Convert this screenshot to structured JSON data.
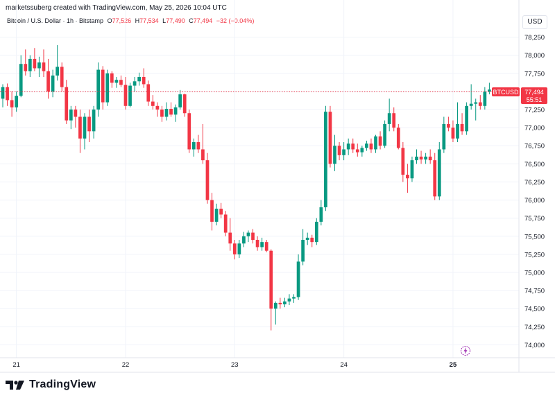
{
  "header": {
    "caption": "marketssuberg created with TradingView.com, May 25, 2026 10:04 UTC",
    "symbol": "Bitcoin / U.S. Dollar · 1h · Bitstamp",
    "open_label": "O",
    "open": "77,526",
    "high_label": "H",
    "high": "77,534",
    "low_label": "L",
    "low": "77,490",
    "close_label": "C",
    "close": "77,494",
    "change": "−32 (−0.04%)",
    "currency": "USD"
  },
  "price_tag": {
    "symbol": "BTCUSD",
    "price": "77,494",
    "countdown": "55:51"
  },
  "brand": {
    "name": "TradingView"
  },
  "colors": {
    "up": "#089981",
    "down": "#f23645",
    "grid": "#f0f3fa",
    "axis_text": "#131722",
    "price_line": "#f23645"
  },
  "chart_data": {
    "type": "candlestick",
    "y_ticks": [
      74000,
      74250,
      74500,
      74750,
      75000,
      75250,
      75500,
      75750,
      76000,
      76250,
      76500,
      76750,
      77000,
      77250,
      77500,
      77750,
      78000,
      78250
    ],
    "y_tick_labels": [
      "74,000",
      "74,250",
      "74,500",
      "74,750",
      "75,000",
      "75,250",
      "75,500",
      "75,750",
      "76,000",
      "76,250",
      "76,500",
      "76,750",
      "77,000",
      "77,250",
      "77,500",
      "77,750",
      "78,000",
      "78,250"
    ],
    "ylim": [
      73880,
      78380
    ],
    "x_range": [
      "2026-05-20T21:00",
      "2026-05-25T14:30"
    ],
    "x_ticks": [
      {
        "t": "2026-05-21T00:00",
        "label": "21",
        "bold": false
      },
      {
        "t": "2026-05-22T00:00",
        "label": "22",
        "bold": false
      },
      {
        "t": "2026-05-23T00:00",
        "label": "23",
        "bold": false
      },
      {
        "t": "2026-05-24T00:00",
        "label": "24",
        "bold": false
      },
      {
        "t": "2026-05-25T00:00",
        "label": "25",
        "bold": true
      }
    ],
    "last_price": 77494,
    "candles": [
      {
        "t": "2026-05-20T21:00",
        "o": 77400,
        "h": 77600,
        "l": 77280,
        "c": 77560
      },
      {
        "t": "2026-05-20T22:00",
        "o": 77560,
        "h": 77610,
        "l": 77300,
        "c": 77380
      },
      {
        "t": "2026-05-20T23:00",
        "o": 77380,
        "h": 77500,
        "l": 77150,
        "c": 77280
      },
      {
        "t": "2026-05-21T00:00",
        "o": 77280,
        "h": 77500,
        "l": 77220,
        "c": 77440
      },
      {
        "t": "2026-05-21T01:00",
        "o": 77440,
        "h": 78000,
        "l": 77420,
        "c": 77880
      },
      {
        "t": "2026-05-21T02:00",
        "o": 77880,
        "h": 78080,
        "l": 77720,
        "c": 77780
      },
      {
        "t": "2026-05-21T03:00",
        "o": 77780,
        "h": 78000,
        "l": 77700,
        "c": 77950
      },
      {
        "t": "2026-05-21T04:00",
        "o": 77950,
        "h": 78100,
        "l": 77780,
        "c": 77820
      },
      {
        "t": "2026-05-21T05:00",
        "o": 77820,
        "h": 77980,
        "l": 77700,
        "c": 77900
      },
      {
        "t": "2026-05-21T06:00",
        "o": 77900,
        "h": 78080,
        "l": 77700,
        "c": 77780
      },
      {
        "t": "2026-05-21T07:00",
        "o": 77780,
        "h": 77950,
        "l": 77400,
        "c": 77500
      },
      {
        "t": "2026-05-21T08:00",
        "o": 77500,
        "h": 77800,
        "l": 77420,
        "c": 77720
      },
      {
        "t": "2026-05-21T09:00",
        "o": 77720,
        "h": 78140,
        "l": 77650,
        "c": 77840
      },
      {
        "t": "2026-05-21T10:00",
        "o": 77840,
        "h": 77900,
        "l": 77500,
        "c": 77560
      },
      {
        "t": "2026-05-21T11:00",
        "o": 77560,
        "h": 77660,
        "l": 77050,
        "c": 77100
      },
      {
        "t": "2026-05-21T12:00",
        "o": 77100,
        "h": 77300,
        "l": 76980,
        "c": 77250
      },
      {
        "t": "2026-05-21T13:00",
        "o": 77250,
        "h": 77300,
        "l": 77000,
        "c": 77150
      },
      {
        "t": "2026-05-21T14:00",
        "o": 77150,
        "h": 77250,
        "l": 76650,
        "c": 76850
      },
      {
        "t": "2026-05-21T15:00",
        "o": 76850,
        "h": 77200,
        "l": 76700,
        "c": 77150
      },
      {
        "t": "2026-05-21T16:00",
        "o": 77150,
        "h": 77250,
        "l": 76800,
        "c": 76950
      },
      {
        "t": "2026-05-21T17:00",
        "o": 76950,
        "h": 77300,
        "l": 76850,
        "c": 77250
      },
      {
        "t": "2026-05-21T18:00",
        "o": 77250,
        "h": 77900,
        "l": 77150,
        "c": 77800
      },
      {
        "t": "2026-05-21T19:00",
        "o": 77800,
        "h": 77850,
        "l": 77250,
        "c": 77350
      },
      {
        "t": "2026-05-21T20:00",
        "o": 77350,
        "h": 77800,
        "l": 77300,
        "c": 77750
      },
      {
        "t": "2026-05-21T21:00",
        "o": 77750,
        "h": 77780,
        "l": 77550,
        "c": 77620
      },
      {
        "t": "2026-05-21T22:00",
        "o": 77620,
        "h": 77700,
        "l": 77550,
        "c": 77660
      },
      {
        "t": "2026-05-21T23:00",
        "o": 77660,
        "h": 77720,
        "l": 77560,
        "c": 77590
      },
      {
        "t": "2026-05-22T00:00",
        "o": 77590,
        "h": 77700,
        "l": 77250,
        "c": 77300
      },
      {
        "t": "2026-05-22T01:00",
        "o": 77300,
        "h": 77620,
        "l": 77280,
        "c": 77580
      },
      {
        "t": "2026-05-22T02:00",
        "o": 77580,
        "h": 77700,
        "l": 77500,
        "c": 77640
      },
      {
        "t": "2026-05-22T03:00",
        "o": 77640,
        "h": 77760,
        "l": 77580,
        "c": 77700
      },
      {
        "t": "2026-05-22T04:00",
        "o": 77700,
        "h": 77820,
        "l": 77550,
        "c": 77600
      },
      {
        "t": "2026-05-22T05:00",
        "o": 77600,
        "h": 77650,
        "l": 77300,
        "c": 77360
      },
      {
        "t": "2026-05-22T06:00",
        "o": 77360,
        "h": 77450,
        "l": 77250,
        "c": 77300
      },
      {
        "t": "2026-05-22T07:00",
        "o": 77300,
        "h": 77350,
        "l": 77150,
        "c": 77250
      },
      {
        "t": "2026-05-22T08:00",
        "o": 77250,
        "h": 77300,
        "l": 77080,
        "c": 77150
      },
      {
        "t": "2026-05-22T09:00",
        "o": 77150,
        "h": 77350,
        "l": 77100,
        "c": 77260
      },
      {
        "t": "2026-05-22T10:00",
        "o": 77260,
        "h": 77350,
        "l": 77150,
        "c": 77180
      },
      {
        "t": "2026-05-22T11:00",
        "o": 77180,
        "h": 77320,
        "l": 77080,
        "c": 77280
      },
      {
        "t": "2026-05-22T12:00",
        "o": 77280,
        "h": 77520,
        "l": 77250,
        "c": 77460
      },
      {
        "t": "2026-05-22T13:00",
        "o": 77460,
        "h": 77470,
        "l": 77150,
        "c": 77200
      },
      {
        "t": "2026-05-22T14:00",
        "o": 77200,
        "h": 77250,
        "l": 76650,
        "c": 76700
      },
      {
        "t": "2026-05-22T15:00",
        "o": 76700,
        "h": 76850,
        "l": 76600,
        "c": 76800
      },
      {
        "t": "2026-05-22T16:00",
        "o": 76800,
        "h": 76900,
        "l": 76650,
        "c": 76700
      },
      {
        "t": "2026-05-22T17:00",
        "o": 76700,
        "h": 77050,
        "l": 76500,
        "c": 76550
      },
      {
        "t": "2026-05-22T18:00",
        "o": 76550,
        "h": 76650,
        "l": 75950,
        "c": 76000
      },
      {
        "t": "2026-05-22T19:00",
        "o": 76000,
        "h": 76100,
        "l": 75580,
        "c": 75700
      },
      {
        "t": "2026-05-22T20:00",
        "o": 75700,
        "h": 75950,
        "l": 75650,
        "c": 75880
      },
      {
        "t": "2026-05-22T21:00",
        "o": 75880,
        "h": 75960,
        "l": 75750,
        "c": 75800
      },
      {
        "t": "2026-05-22T22:00",
        "o": 75800,
        "h": 75850,
        "l": 75500,
        "c": 75550
      },
      {
        "t": "2026-05-22T23:00",
        "o": 75550,
        "h": 75750,
        "l": 75300,
        "c": 75400
      },
      {
        "t": "2026-05-23T00:00",
        "o": 75400,
        "h": 75450,
        "l": 75180,
        "c": 75250
      },
      {
        "t": "2026-05-23T01:00",
        "o": 75250,
        "h": 75450,
        "l": 75200,
        "c": 75400
      },
      {
        "t": "2026-05-23T02:00",
        "o": 75400,
        "h": 75560,
        "l": 75350,
        "c": 75500
      },
      {
        "t": "2026-05-23T03:00",
        "o": 75500,
        "h": 75580,
        "l": 75420,
        "c": 75550
      },
      {
        "t": "2026-05-23T04:00",
        "o": 75550,
        "h": 75600,
        "l": 75400,
        "c": 75450
      },
      {
        "t": "2026-05-23T05:00",
        "o": 75450,
        "h": 75500,
        "l": 75300,
        "c": 75350
      },
      {
        "t": "2026-05-23T06:00",
        "o": 75350,
        "h": 75480,
        "l": 75300,
        "c": 75420
      },
      {
        "t": "2026-05-23T07:00",
        "o": 75420,
        "h": 75450,
        "l": 75280,
        "c": 75300
      },
      {
        "t": "2026-05-23T08:00",
        "o": 75300,
        "h": 75320,
        "l": 74200,
        "c": 74500
      },
      {
        "t": "2026-05-23T09:00",
        "o": 74500,
        "h": 74600,
        "l": 74280,
        "c": 74580
      },
      {
        "t": "2026-05-23T10:00",
        "o": 74580,
        "h": 74650,
        "l": 74500,
        "c": 74560
      },
      {
        "t": "2026-05-23T11:00",
        "o": 74560,
        "h": 74650,
        "l": 74520,
        "c": 74600
      },
      {
        "t": "2026-05-23T12:00",
        "o": 74600,
        "h": 74700,
        "l": 74550,
        "c": 74640
      },
      {
        "t": "2026-05-23T13:00",
        "o": 74640,
        "h": 74700,
        "l": 74580,
        "c": 74660
      },
      {
        "t": "2026-05-23T14:00",
        "o": 74660,
        "h": 75250,
        "l": 74620,
        "c": 75150
      },
      {
        "t": "2026-05-23T15:00",
        "o": 75150,
        "h": 75600,
        "l": 75100,
        "c": 75450
      },
      {
        "t": "2026-05-23T16:00",
        "o": 75450,
        "h": 75550,
        "l": 75380,
        "c": 75480
      },
      {
        "t": "2026-05-23T17:00",
        "o": 75480,
        "h": 75520,
        "l": 75350,
        "c": 75420
      },
      {
        "t": "2026-05-23T18:00",
        "o": 75420,
        "h": 75750,
        "l": 75380,
        "c": 75700
      },
      {
        "t": "2026-05-23T19:00",
        "o": 75700,
        "h": 76000,
        "l": 75650,
        "c": 75900
      },
      {
        "t": "2026-05-23T20:00",
        "o": 75900,
        "h": 77300,
        "l": 75850,
        "c": 77220
      },
      {
        "t": "2026-05-23T21:00",
        "o": 77220,
        "h": 77300,
        "l": 76450,
        "c": 76500
      },
      {
        "t": "2026-05-23T22:00",
        "o": 76500,
        "h": 76900,
        "l": 76400,
        "c": 76750
      },
      {
        "t": "2026-05-23T23:00",
        "o": 76750,
        "h": 76800,
        "l": 76550,
        "c": 76620
      },
      {
        "t": "2026-05-24T00:00",
        "o": 76620,
        "h": 76800,
        "l": 76550,
        "c": 76700
      },
      {
        "t": "2026-05-24T01:00",
        "o": 76700,
        "h": 76850,
        "l": 76620,
        "c": 76780
      },
      {
        "t": "2026-05-24T02:00",
        "o": 76780,
        "h": 76850,
        "l": 76650,
        "c": 76700
      },
      {
        "t": "2026-05-24T03:00",
        "o": 76700,
        "h": 76780,
        "l": 76600,
        "c": 76660
      },
      {
        "t": "2026-05-24T04:00",
        "o": 76660,
        "h": 76750,
        "l": 76600,
        "c": 76720
      },
      {
        "t": "2026-05-24T05:00",
        "o": 76720,
        "h": 76820,
        "l": 76680,
        "c": 76780
      },
      {
        "t": "2026-05-24T06:00",
        "o": 76780,
        "h": 76850,
        "l": 76650,
        "c": 76700
      },
      {
        "t": "2026-05-24T07:00",
        "o": 76700,
        "h": 76900,
        "l": 76650,
        "c": 76880
      },
      {
        "t": "2026-05-24T08:00",
        "o": 76880,
        "h": 76950,
        "l": 76700,
        "c": 76750
      },
      {
        "t": "2026-05-24T09:00",
        "o": 76750,
        "h": 77100,
        "l": 76720,
        "c": 77050
      },
      {
        "t": "2026-05-24T10:00",
        "o": 77050,
        "h": 77400,
        "l": 76950,
        "c": 77200
      },
      {
        "t": "2026-05-24T11:00",
        "o": 77200,
        "h": 77280,
        "l": 76950,
        "c": 77000
      },
      {
        "t": "2026-05-24T12:00",
        "o": 77000,
        "h": 77050,
        "l": 76700,
        "c": 76720
      },
      {
        "t": "2026-05-24T13:00",
        "o": 76720,
        "h": 76800,
        "l": 76250,
        "c": 76350
      },
      {
        "t": "2026-05-24T14:00",
        "o": 76350,
        "h": 76500,
        "l": 76100,
        "c": 76300
      },
      {
        "t": "2026-05-24T15:00",
        "o": 76300,
        "h": 76600,
        "l": 76250,
        "c": 76550
      },
      {
        "t": "2026-05-24T16:00",
        "o": 76550,
        "h": 76700,
        "l": 76500,
        "c": 76600
      },
      {
        "t": "2026-05-24T17:00",
        "o": 76600,
        "h": 76680,
        "l": 76500,
        "c": 76560
      },
      {
        "t": "2026-05-24T18:00",
        "o": 76560,
        "h": 76650,
        "l": 76500,
        "c": 76600
      },
      {
        "t": "2026-05-24T19:00",
        "o": 76600,
        "h": 76700,
        "l": 76500,
        "c": 76550
      },
      {
        "t": "2026-05-24T20:00",
        "o": 76550,
        "h": 76650,
        "l": 76000,
        "c": 76050
      },
      {
        "t": "2026-05-24T21:00",
        "o": 76050,
        "h": 76800,
        "l": 76000,
        "c": 76700
      },
      {
        "t": "2026-05-24T22:00",
        "o": 76700,
        "h": 77150,
        "l": 76650,
        "c": 77050
      },
      {
        "t": "2026-05-24T23:00",
        "o": 77050,
        "h": 77150,
        "l": 76950,
        "c": 77000
      },
      {
        "t": "2026-05-25T00:00",
        "o": 77000,
        "h": 77100,
        "l": 76800,
        "c": 76850
      },
      {
        "t": "2026-05-25T01:00",
        "o": 76850,
        "h": 77350,
        "l": 76800,
        "c": 77050
      },
      {
        "t": "2026-05-25T02:00",
        "o": 77050,
        "h": 77200,
        "l": 76900,
        "c": 76950
      },
      {
        "t": "2026-05-25T03:00",
        "o": 76950,
        "h": 77350,
        "l": 76900,
        "c": 77300
      },
      {
        "t": "2026-05-25T04:00",
        "o": 77300,
        "h": 77600,
        "l": 77250,
        "c": 77330
      },
      {
        "t": "2026-05-25T05:00",
        "o": 77330,
        "h": 77400,
        "l": 77100,
        "c": 77350
      },
      {
        "t": "2026-05-25T06:00",
        "o": 77350,
        "h": 77450,
        "l": 77250,
        "c": 77300
      },
      {
        "t": "2026-05-25T07:00",
        "o": 77300,
        "h": 77560,
        "l": 77250,
        "c": 77500
      },
      {
        "t": "2026-05-25T08:00",
        "o": 77500,
        "h": 77620,
        "l": 77460,
        "c": 77526
      },
      {
        "t": "2026-05-25T09:00",
        "o": 77526,
        "h": 77534,
        "l": 77490,
        "c": 77494
      }
    ]
  }
}
